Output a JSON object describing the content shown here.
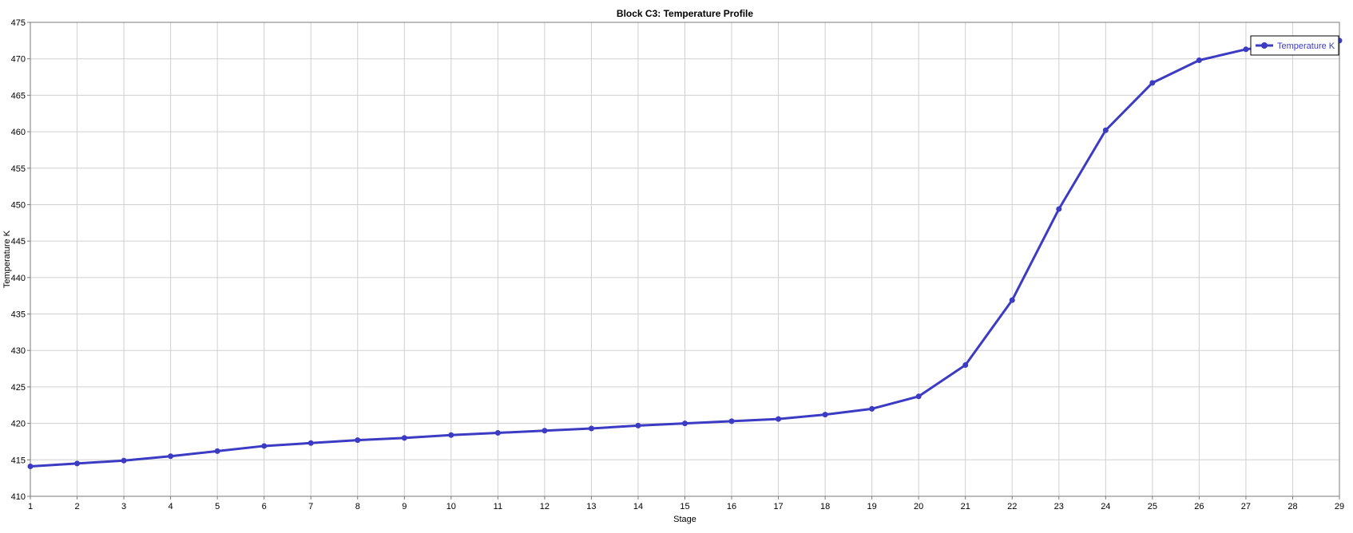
{
  "chart_data": {
    "type": "line",
    "title": "Block C3: Temperature Profile",
    "xlabel": "Stage",
    "ylabel": "Temperature K",
    "xlim": [
      1,
      29
    ],
    "ylim": [
      410,
      475
    ],
    "x_ticks": [
      1,
      2,
      3,
      4,
      5,
      6,
      7,
      8,
      9,
      10,
      11,
      12,
      13,
      14,
      15,
      16,
      17,
      18,
      19,
      20,
      21,
      22,
      23,
      24,
      25,
      26,
      27,
      28,
      29
    ],
    "y_ticks": [
      410,
      415,
      420,
      425,
      430,
      435,
      440,
      445,
      450,
      455,
      460,
      465,
      470,
      475
    ],
    "grid": true,
    "legend_position": "top-right",
    "series": [
      {
        "name": "Temperature K",
        "color": "#3b3bc4",
        "x": [
          1,
          2,
          3,
          4,
          5,
          6,
          7,
          8,
          9,
          10,
          11,
          12,
          13,
          14,
          15,
          16,
          17,
          18,
          19,
          20,
          21,
          22,
          23,
          24,
          25,
          26,
          27,
          28,
          29
        ],
        "values": [
          414.1,
          414.5,
          414.9,
          415.5,
          416.2,
          416.9,
          417.3,
          417.7,
          418.0,
          418.4,
          418.7,
          419.0,
          419.3,
          419.7,
          420.0,
          420.3,
          420.6,
          421.2,
          422.0,
          423.7,
          428.0,
          436.9,
          449.4,
          460.2,
          466.7,
          469.8,
          471.3,
          472.1,
          472.5
        ]
      }
    ]
  }
}
